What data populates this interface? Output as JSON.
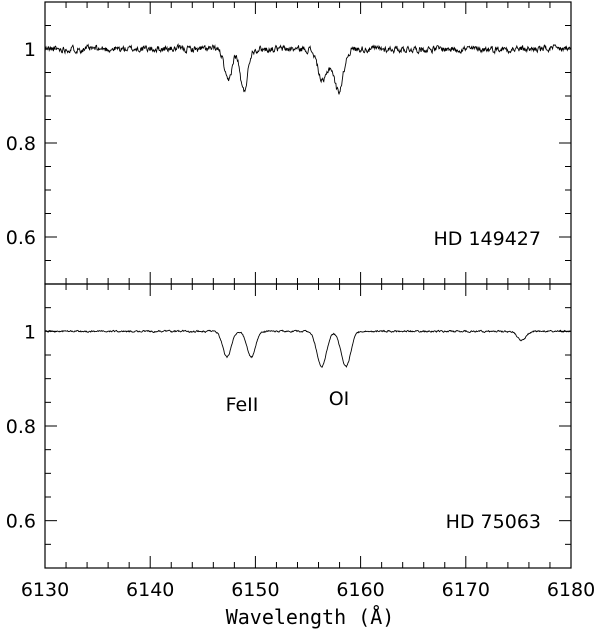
{
  "chart_data": [
    {
      "type": "line",
      "panel": "top",
      "annotation": "HD 149427",
      "xlim": [
        6130,
        6180
      ],
      "ylim": [
        0.5,
        1.1
      ],
      "yticks": [
        "0.6",
        "0.8",
        "1"
      ],
      "baseline": 1.0,
      "noise": 0.012,
      "lines": [
        {
          "center": 6147.4,
          "depth": 0.07,
          "width": 0.35
        },
        {
          "center": 6148.9,
          "depth": 0.09,
          "width": 0.35
        },
        {
          "center": 6156.4,
          "depth": 0.07,
          "width": 0.45
        },
        {
          "center": 6157.9,
          "depth": 0.09,
          "width": 0.45
        }
      ]
    },
    {
      "type": "line",
      "panel": "bottom",
      "annotation": "HD 75063",
      "xlim": [
        6130,
        6180
      ],
      "ylim": [
        0.5,
        1.1
      ],
      "yticks": [
        "0.6",
        "0.8",
        "1"
      ],
      "baseline": 1.0,
      "noise": 0.003,
      "lines": [
        {
          "center": 6147.3,
          "depth": 0.055,
          "width": 0.4
        },
        {
          "center": 6149.6,
          "depth": 0.055,
          "width": 0.4
        },
        {
          "center": 6156.3,
          "depth": 0.075,
          "width": 0.45
        },
        {
          "center": 6158.6,
          "depth": 0.075,
          "width": 0.45
        },
        {
          "center": 6175.3,
          "depth": 0.02,
          "width": 0.4
        }
      ],
      "labels": [
        {
          "text": "FeII",
          "x": 6148.5,
          "y": 0.885
        },
        {
          "text": "OI",
          "x": 6157.6,
          "y": 0.89
        }
      ]
    }
  ],
  "xaxis": {
    "label": "Wavelength (Å)",
    "ticks": [
      "6130",
      "6140",
      "6150",
      "6160",
      "6170",
      "6180"
    ]
  }
}
